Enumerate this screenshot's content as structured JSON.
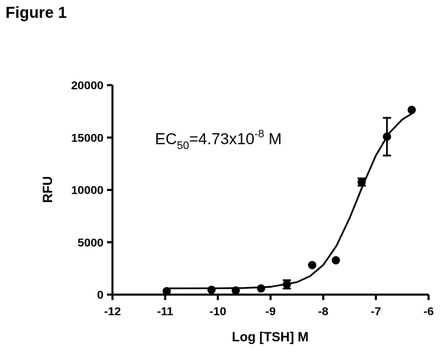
{
  "chart_data": {
    "type": "scatter",
    "title": "Figure 1",
    "xlabel": "Log [TSH] M",
    "ylabel": "RFU",
    "annotation": {
      "text": "EC",
      "subscript": "50",
      "middle": "=4.73x10",
      "superscript": "-8",
      "end": " M"
    },
    "x": [
      -10.97,
      -10.12,
      -9.66,
      -9.18,
      -8.69,
      -8.21,
      -7.76,
      -7.27,
      -6.79,
      -6.32
    ],
    "values": [
      330,
      460,
      390,
      590,
      980,
      2820,
      3280,
      10750,
      15080,
      17640
    ],
    "errors": [
      null,
      null,
      null,
      null,
      400,
      null,
      null,
      350,
      1800,
      null
    ],
    "color": "#000000",
    "fit": {
      "x": [
        -11,
        -10,
        -9.5,
        -9,
        -8.5,
        -8.25,
        -8,
        -7.75,
        -7.5,
        -7.33,
        -7.25,
        -7,
        -6.75,
        -6.5,
        -6.3
      ],
      "values": [
        600,
        608,
        634,
        742,
        1190,
        1765,
        2828,
        4646,
        7292,
        9400,
        10411,
        13290,
        15415,
        16721,
        17337
      ]
    },
    "xlim": [
      -12,
      -6
    ],
    "xticks": [
      -12,
      -11,
      -10,
      -9,
      -8,
      -7,
      -6
    ],
    "ylim": [
      0,
      20000
    ],
    "yticks": [
      0,
      5000,
      10000,
      15000,
      20000
    ]
  }
}
